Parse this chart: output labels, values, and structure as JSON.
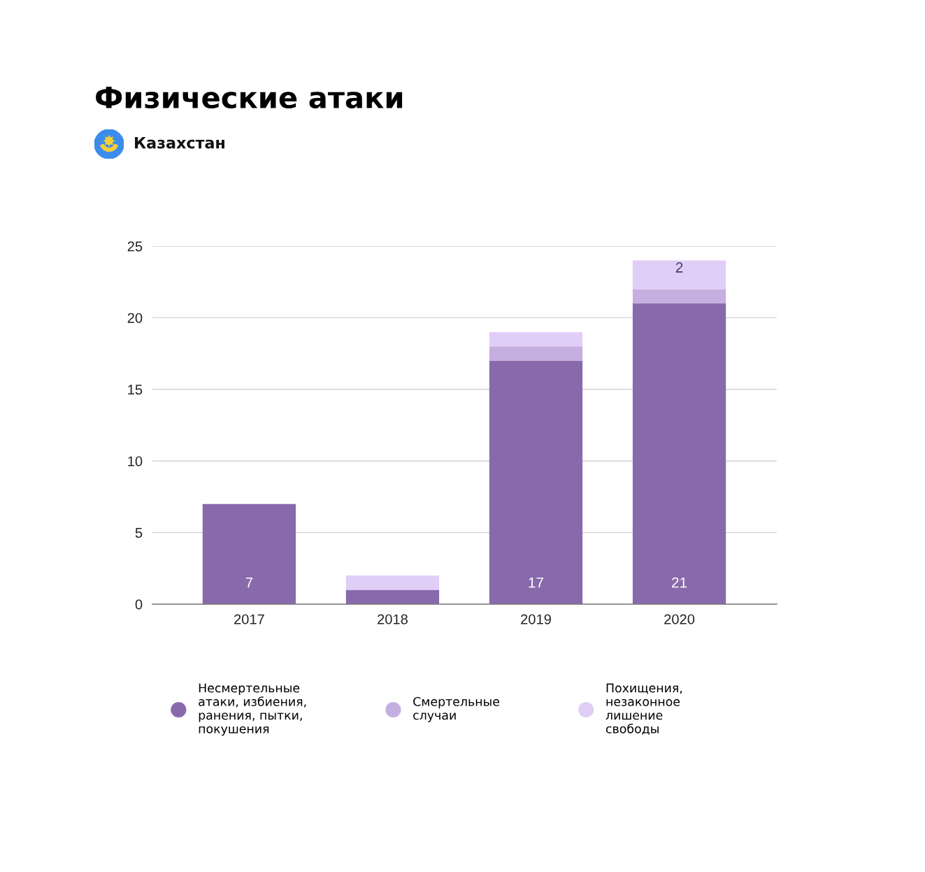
{
  "chart_data": {
    "type": "bar",
    "title": "Физические атаки",
    "subtitle": "Казахстан",
    "categories": [
      "2017",
      "2018",
      "2019",
      "2020"
    ],
    "stacked": true,
    "series": [
      {
        "name": "Несмертельные атаки, избиения, ранения, пытки, покушения",
        "color": "#886aac",
        "values": [
          7,
          1,
          17,
          21
        ],
        "value_labels": [
          "7",
          null,
          "17",
          "21"
        ]
      },
      {
        "name": "Смертельные случаи",
        "color": "#c5aee0",
        "values": [
          0,
          0,
          1,
          1
        ]
      },
      {
        "name": "Похищения, незаконное лишение свободы",
        "color": "#e0cef7",
        "values": [
          0,
          1,
          1,
          2
        ],
        "value_labels": [
          null,
          null,
          null,
          "2"
        ]
      }
    ],
    "ylim": [
      0,
      25
    ],
    "yticks": [
      0,
      5,
      10,
      15,
      20,
      25
    ],
    "grid": "y",
    "legend": "bottom"
  }
}
